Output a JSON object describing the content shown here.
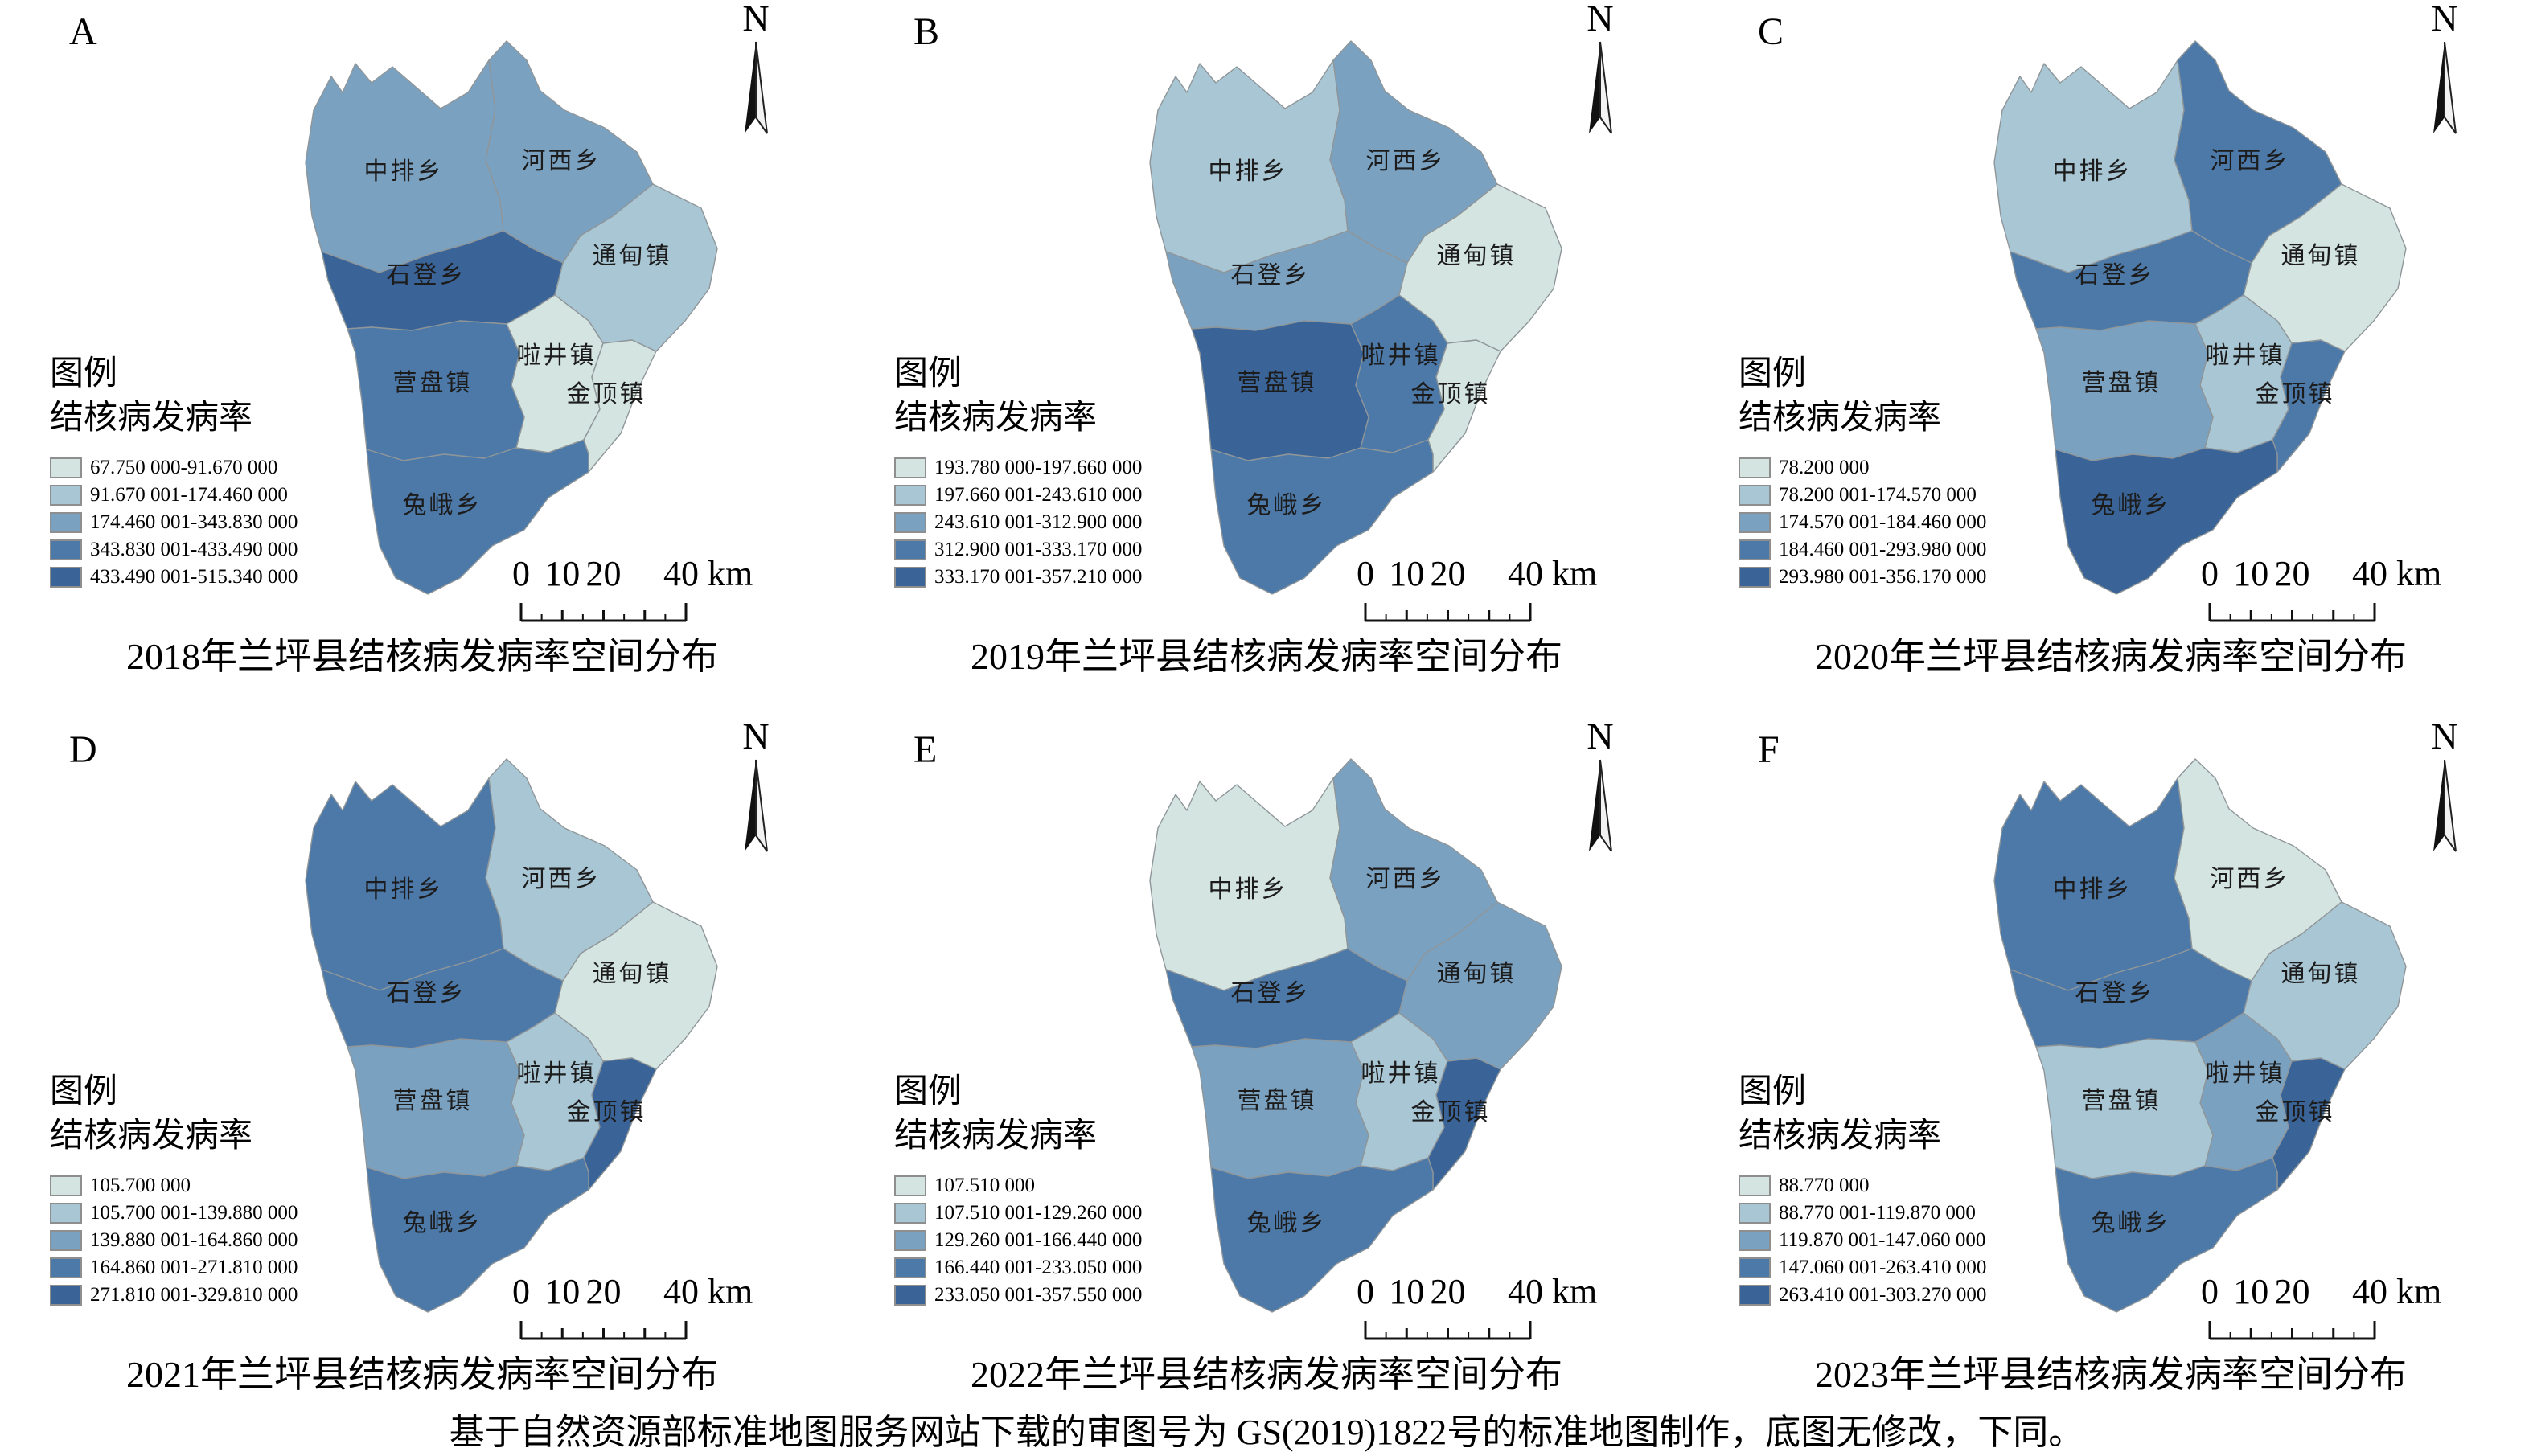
{
  "shared": {
    "north_label": "N",
    "legend_title": "图例",
    "legend_subtitle": "结核病发病率",
    "scalebar": {
      "tick_labels": [
        "0",
        "10",
        "20"
      ],
      "end_label": "40 km",
      "tick_km": [
        0,
        10,
        20,
        40
      ]
    },
    "class_colors": [
      "#d4e4e1",
      "#a9c6d5",
      "#7ba1c1",
      "#4d79a9",
      "#3a6497"
    ],
    "region_names": [
      "中排乡",
      "河西乡",
      "石登乡",
      "通甸镇",
      "啦井镇",
      "金顶镇",
      "营盘镇",
      "兔峨乡"
    ]
  },
  "panels": [
    {
      "letter": "A",
      "year": "2018",
      "title": "2018年兰坪县结核病发病率空间分布",
      "legend_classes": [
        "67.750 000-91.670 000",
        "91.670 001-174.460 000",
        "174.460 001-343.830 000",
        "343.830 001-433.490 000",
        "433.490 001-515.340 000"
      ],
      "region_classes": {
        "中排乡": 3,
        "河西乡": 3,
        "石登乡": 5,
        "通甸镇": 2,
        "啦井镇": 1,
        "金顶镇": 1,
        "营盘镇": 4,
        "兔峨乡": 4
      }
    },
    {
      "letter": "B",
      "year": "2019",
      "title": "2019年兰坪县结核病发病率空间分布",
      "legend_classes": [
        "193.780 000-197.660 000",
        "197.660 001-243.610 000",
        "243.610 001-312.900 000",
        "312.900 001-333.170 000",
        "333.170 001-357.210 000"
      ],
      "region_classes": {
        "中排乡": 2,
        "河西乡": 3,
        "石登乡": 3,
        "通甸镇": 1,
        "啦井镇": 4,
        "金顶镇": 1,
        "营盘镇": 5,
        "兔峨乡": 4
      }
    },
    {
      "letter": "C",
      "year": "2020",
      "title": "2020年兰坪县结核病发病率空间分布",
      "legend_classes": [
        "78.200 000",
        "78.200 001-174.570 000",
        "174.570 001-184.460 000",
        "184.460 001-293.980 000",
        "293.980 001-356.170 000"
      ],
      "region_classes": {
        "中排乡": 2,
        "河西乡": 4,
        "石登乡": 4,
        "通甸镇": 1,
        "啦井镇": 2,
        "金顶镇": 4,
        "营盘镇": 3,
        "兔峨乡": 5
      }
    },
    {
      "letter": "D",
      "year": "2021",
      "title": "2021年兰坪县结核病发病率空间分布",
      "legend_classes": [
        "105.700 000",
        "105.700 001-139.880 000",
        "139.880 001-164.860 000",
        "164.860 001-271.810 000",
        "271.810 001-329.810 000"
      ],
      "region_classes": {
        "中排乡": 4,
        "河西乡": 2,
        "石登乡": 4,
        "通甸镇": 1,
        "啦井镇": 2,
        "金顶镇": 5,
        "营盘镇": 3,
        "兔峨乡": 4
      }
    },
    {
      "letter": "E",
      "year": "2022",
      "title": "2022年兰坪县结核病发病率空间分布",
      "legend_classes": [
        "107.510 000",
        "107.510 001-129.260 000",
        "129.260 001-166.440 000",
        "166.440 001-233.050 000",
        "233.050 001-357.550 000"
      ],
      "region_classes": {
        "中排乡": 1,
        "河西乡": 3,
        "石登乡": 4,
        "通甸镇": 3,
        "啦井镇": 2,
        "金顶镇": 5,
        "营盘镇": 3,
        "兔峨乡": 4
      }
    },
    {
      "letter": "F",
      "year": "2023",
      "title": "2023年兰坪县结核病发病率空间分布",
      "legend_classes": [
        "88.770 000",
        "88.770 001-119.870 000",
        "119.870 001-147.060 000",
        "147.060 001-263.410 000",
        "263.410 001-303.270 000"
      ],
      "region_classes": {
        "中排乡": 4,
        "河西乡": 1,
        "石登乡": 4,
        "通甸镇": 2,
        "啦井镇": 3,
        "金顶镇": 5,
        "营盘镇": 2,
        "兔峨乡": 4
      }
    }
  ],
  "caption": "基于自然资源部标准地图服务网站下载的审图号为 GS(2019)1822号的标准地图制作，底图无修改，下同。",
  "chart_data": {
    "type": "choropleth",
    "title": "兰坪县结核病发病率空间分布 2018-2023",
    "unit": "结核病发病率",
    "regions": [
      "中排乡",
      "河西乡",
      "石登乡",
      "通甸镇",
      "啦井镇",
      "金顶镇",
      "营盘镇",
      "兔峨乡"
    ],
    "years": [
      "2018",
      "2019",
      "2020",
      "2021",
      "2022",
      "2023"
    ],
    "class_index_by_year": {
      "2018": [
        3,
        3,
        5,
        2,
        1,
        1,
        4,
        4
      ],
      "2019": [
        2,
        3,
        3,
        1,
        4,
        1,
        5,
        4
      ],
      "2020": [
        2,
        4,
        4,
        1,
        2,
        4,
        3,
        5
      ],
      "2021": [
        4,
        2,
        4,
        1,
        2,
        5,
        3,
        4
      ],
      "2022": [
        1,
        3,
        4,
        3,
        2,
        5,
        3,
        4
      ],
      "2023": [
        4,
        1,
        4,
        2,
        3,
        5,
        2,
        4
      ]
    },
    "class_ranges_by_year": {
      "2018": [
        "67.750 000-91.670 000",
        "91.670 001-174.460 000",
        "174.460 001-343.830 000",
        "343.830 001-433.490 000",
        "433.490 001-515.340 000"
      ],
      "2019": [
        "193.780 000-197.660 000",
        "197.660 001-243.610 000",
        "243.610 001-312.900 000",
        "312.900 001-333.170 000",
        "333.170 001-357.210 000"
      ],
      "2020": [
        "78.200 000",
        "78.200 001-174.570 000",
        "174.570 001-184.460 000",
        "184.460 001-293.980 000",
        "293.980 001-356.170 000"
      ],
      "2021": [
        "105.700 000",
        "105.700 001-139.880 000",
        "139.880 001-164.860 000",
        "164.860 001-271.810 000",
        "271.810 001-329.810 000"
      ],
      "2022": [
        "107.510 000",
        "107.510 001-129.260 000",
        "129.260 001-166.440 000",
        "166.440 001-233.050 000",
        "233.050 001-357.550 000"
      ],
      "2023": [
        "88.770 000",
        "88.770 001-119.870 000",
        "119.870 001-147.060 000",
        "147.060 001-263.410 000",
        "263.410 001-303.270 000"
      ]
    },
    "legend_position": "bottom-left",
    "scalebar": "0 10 20 40 km",
    "colors_light_to_dark": [
      "#d4e4e1",
      "#a9c6d5",
      "#7ba1c1",
      "#4d79a9",
      "#3a6497"
    ]
  }
}
